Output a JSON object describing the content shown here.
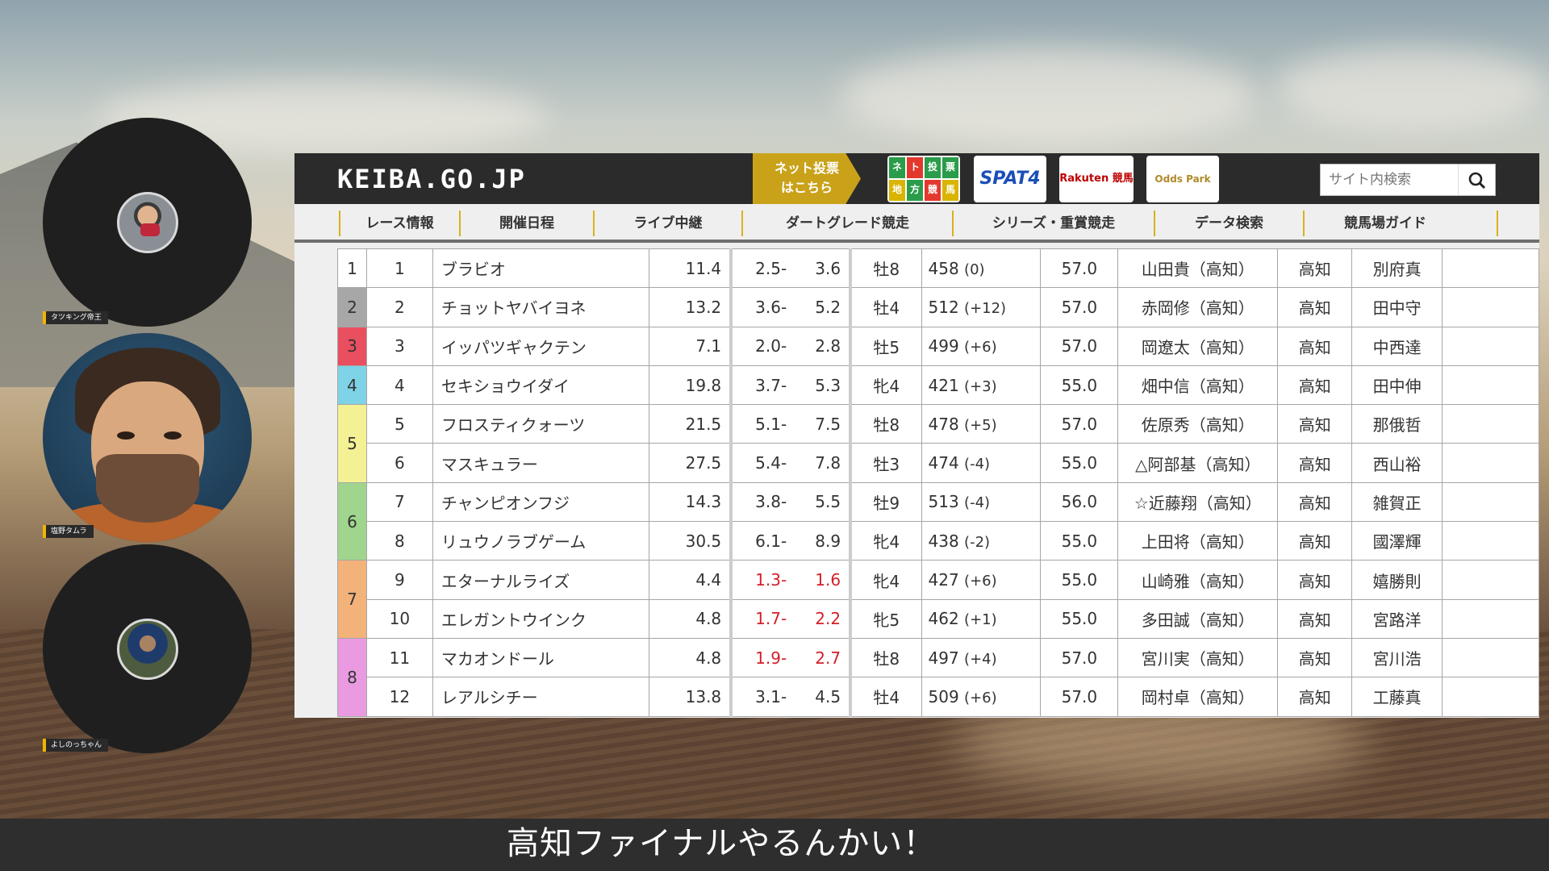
{
  "participants": [
    {
      "name": "タツキング帝王"
    },
    {
      "name": "塩野タムラ"
    },
    {
      "name": "よしのっちゃん"
    }
  ],
  "site": {
    "logo": "KEIBA.GO.JP",
    "netvote_line1": "ネット投票",
    "netvote_line2": "はこちら",
    "chiho_banner_text": [
      "ネ",
      "ト",
      "投",
      "票",
      "地",
      "方",
      "競",
      "馬"
    ],
    "spat_label": "SPAT4",
    "rakuten_label": "Rakuten 競馬",
    "odds_label": "Odds Park",
    "search_placeholder": "サイト内検索"
  },
  "nav": [
    "レース情報",
    "開催日程",
    "ライブ中継",
    "ダートグレード競走",
    "シリーズ・重賞競走",
    "データ検索",
    "競馬場ガイド"
  ],
  "waku_colors": {
    "1": "#ffffff",
    "2": "#a7a7a7",
    "3": "#e94f5e",
    "4": "#7ed3e7",
    "5": "#f3f193",
    "6": "#9fd58c",
    "7": "#f2b27a",
    "8": "#ea9ae0"
  },
  "entries": [
    {
      "waku": "1",
      "num": "1",
      "horse": "ブラビオ",
      "odds": "11.4",
      "range_lo": "2.5-",
      "range_hi": "3.6",
      "sex_age": "牡8",
      "weight": "458",
      "weight_diff": "(0)",
      "kinryo": "57.0",
      "jockey": "山田貴（高知）",
      "region": "高知",
      "trainer": "別府真",
      "highlight_odds": false,
      "highlight_sex": false
    },
    {
      "waku": "2",
      "num": "2",
      "horse": "チョットヤバイヨネ",
      "odds": "13.2",
      "range_lo": "3.6-",
      "range_hi": "5.2",
      "sex_age": "牡4",
      "weight": "512",
      "weight_diff": "(+12)",
      "kinryo": "57.0",
      "jockey": "赤岡修（高知）",
      "region": "高知",
      "trainer": "田中守",
      "highlight_odds": false,
      "highlight_sex": false
    },
    {
      "waku": "3",
      "num": "3",
      "horse": "イッパツギャクテン",
      "odds": "7.1",
      "range_lo": "2.0-",
      "range_hi": "2.8",
      "sex_age": "牡5",
      "weight": "499",
      "weight_diff": "(+6)",
      "kinryo": "57.0",
      "jockey": "岡遼太（高知）",
      "region": "高知",
      "trainer": "中西達",
      "highlight_odds": true,
      "highlight_range": false,
      "highlight_sex": false
    },
    {
      "waku": "4",
      "num": "4",
      "horse": "セキショウイダイ",
      "odds": "19.8",
      "range_lo": "3.7-",
      "range_hi": "5.3",
      "sex_age": "牝4",
      "weight": "421",
      "weight_diff": "(+3)",
      "kinryo": "55.0",
      "jockey": "畑中信（高知）",
      "region": "高知",
      "trainer": "田中伸",
      "highlight_odds": false,
      "highlight_sex": true
    },
    {
      "waku": "5",
      "num": "5",
      "horse": "フロスティクォーツ",
      "odds": "21.5",
      "range_lo": "5.1-",
      "range_hi": "7.5",
      "sex_age": "牡8",
      "weight": "478",
      "weight_diff": "(+5)",
      "kinryo": "57.0",
      "jockey": "佐原秀（高知）",
      "region": "高知",
      "trainer": "那俄哲",
      "highlight_odds": false,
      "highlight_sex": false
    },
    {
      "waku": "5",
      "num": "6",
      "horse": "マスキュラー",
      "odds": "27.5",
      "range_lo": "5.4-",
      "range_hi": "7.8",
      "sex_age": "牡3",
      "weight": "474",
      "weight_diff": "(-4)",
      "kinryo": "55.0",
      "jockey": "△阿部基（高知）",
      "region": "高知",
      "trainer": "西山裕",
      "highlight_odds": false,
      "highlight_sex": false
    },
    {
      "waku": "6",
      "num": "7",
      "horse": "チャンピオンフジ",
      "odds": "14.3",
      "range_lo": "3.8-",
      "range_hi": "5.5",
      "sex_age": "牡9",
      "weight": "513",
      "weight_diff": "(-4)",
      "kinryo": "56.0",
      "jockey": "☆近藤翔（高知）",
      "region": "高知",
      "trainer": "雑賀正",
      "highlight_odds": false,
      "highlight_sex": false
    },
    {
      "waku": "6",
      "num": "8",
      "horse": "リュウノラブゲーム",
      "odds": "30.5",
      "range_lo": "6.1-",
      "range_hi": "8.9",
      "sex_age": "牝4",
      "weight": "438",
      "weight_diff": "(-2)",
      "kinryo": "55.0",
      "jockey": "上田将（高知）",
      "region": "高知",
      "trainer": "國澤輝",
      "highlight_odds": false,
      "highlight_sex": true
    },
    {
      "waku": "7",
      "num": "9",
      "horse": "エターナルライズ",
      "odds": "4.4",
      "range_lo": "1.3-",
      "range_hi": "1.6",
      "sex_age": "牝4",
      "weight": "427",
      "weight_diff": "(+6)",
      "kinryo": "55.0",
      "jockey": "山崎雅（高知）",
      "region": "高知",
      "trainer": "嬉勝則",
      "highlight_odds": true,
      "highlight_range": true,
      "highlight_sex": true
    },
    {
      "waku": "7",
      "num": "10",
      "horse": "エレガントウインク",
      "odds": "4.8",
      "range_lo": "1.7-",
      "range_hi": "2.2",
      "sex_age": "牝5",
      "weight": "462",
      "weight_diff": "(+1)",
      "kinryo": "55.0",
      "jockey": "多田誠（高知）",
      "region": "高知",
      "trainer": "宮路洋",
      "highlight_odds": true,
      "highlight_range": true,
      "highlight_sex": true
    },
    {
      "waku": "8",
      "num": "11",
      "horse": "マカオンドール",
      "odds": "4.8",
      "range_lo": "1.9-",
      "range_hi": "2.7",
      "sex_age": "牡8",
      "weight": "497",
      "weight_diff": "(+4)",
      "kinryo": "57.0",
      "jockey": "宮川実（高知）",
      "region": "高知",
      "trainer": "宮川浩",
      "highlight_odds": true,
      "highlight_range": true,
      "highlight_sex": false
    },
    {
      "waku": "8",
      "num": "12",
      "horse": "レアルシチー",
      "odds": "13.8",
      "range_lo": "3.1-",
      "range_hi": "4.5",
      "sex_age": "牡4",
      "weight": "509",
      "weight_diff": "(+6)",
      "kinryo": "57.0",
      "jockey": "岡村卓（高知）",
      "region": "高知",
      "trainer": "工藤真",
      "highlight_odds": false,
      "highlight_sex": false
    }
  ],
  "caption": "高知ファイナルやるんかい！"
}
